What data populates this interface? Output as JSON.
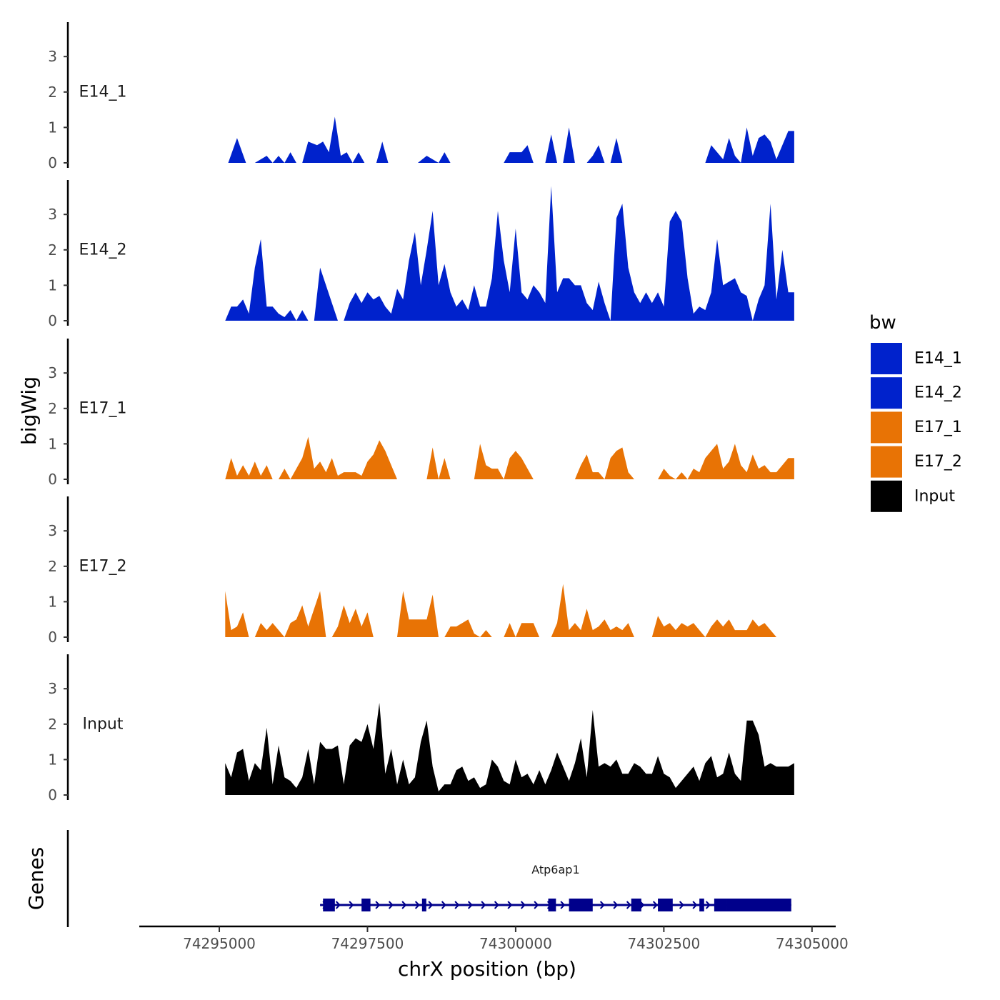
{
  "chart_data": {
    "type": "area",
    "y_axis_title": "bigWig",
    "x_axis_title": "chrX position (bp)",
    "genes_track_title": "Genes",
    "x_range": [
      74293650,
      74305400
    ],
    "x_ticks": [
      74295000,
      74297500,
      74300000,
      74302500,
      74305000
    ],
    "x_tick_labels": [
      "74295000",
      "74297500",
      "74300000",
      "74302500",
      "74305000"
    ],
    "y_range": [
      0,
      4
    ],
    "y_ticks": [
      0,
      1,
      2,
      3
    ],
    "y_tick_labels": [
      "0",
      "1",
      "2",
      "3"
    ],
    "legend": {
      "title": "bw",
      "entries": [
        {
          "name": "E14_1",
          "color": "#0022CC"
        },
        {
          "name": "E14_2",
          "color": "#0022CC"
        },
        {
          "name": "E17_1",
          "color": "#E87305"
        },
        {
          "name": "E17_2",
          "color": "#E87305"
        },
        {
          "name": "Input",
          "color": "#000000"
        }
      ]
    },
    "series": [
      {
        "name": "E14_1",
        "label": "E14_1",
        "color": "#0022CC",
        "x": [
          74295150,
          74295300,
          74295450,
          74295600,
          74295800,
          74295900,
          74296000,
          74296100,
          74296200,
          74296300,
          74296400,
          74296500,
          74296650,
          74296750,
          74296850,
          74296950,
          74297050,
          74297150,
          74297250,
          74297350,
          74297450,
          74297550,
          74297650,
          74297750,
          74297850,
          74297950,
          74298050,
          74298200,
          74298350,
          74298500,
          74298700,
          74298800,
          74298900,
          74299000,
          74299100,
          74299200,
          74299300,
          74299400,
          74299500,
          74299600,
          74299700,
          74299800,
          74299900,
          74300000,
          74300100,
          74300200,
          74300300,
          74300400,
          74300500,
          74300600,
          74300700,
          74300800,
          74300900,
          74301000,
          74301100,
          74301200,
          74301300,
          74301400,
          74301500,
          74301600,
          74301700,
          74301800,
          74301900,
          74302000,
          74302100,
          74302200,
          74302300,
          74302400,
          74302500,
          74302600,
          74302700,
          74302800,
          74302900,
          74303000,
          74303100,
          74303200,
          74303300,
          74303400,
          74303500,
          74303600,
          74303700,
          74303800,
          74303900,
          74304000,
          74304100,
          74304200,
          74304300,
          74304400,
          74304500,
          74304600,
          74304700
        ],
        "values": [
          0,
          0.7,
          0,
          0,
          0.2,
          0,
          0.2,
          0,
          0.3,
          0,
          0,
          0.6,
          0.5,
          0.6,
          0.3,
          1.3,
          0.2,
          0.3,
          0,
          0.3,
          0,
          0,
          0,
          0.6,
          0,
          0,
          0,
          0,
          0,
          0.2,
          0,
          0.3,
          0,
          0,
          0,
          0,
          0,
          0,
          0,
          0,
          0,
          0,
          0.3,
          0.3,
          0.3,
          0.5,
          0,
          0,
          0,
          0.8,
          0,
          0,
          1.0,
          0,
          0,
          0,
          0.2,
          0.5,
          0,
          0,
          0.7,
          0,
          0,
          0,
          0,
          0,
          0,
          0,
          0,
          0,
          0,
          0,
          0,
          0,
          0,
          0,
          0.5,
          0.3,
          0.1,
          0.7,
          0.2,
          0,
          1.0,
          0.2,
          0.7,
          0.8,
          0.6,
          0.1,
          0.5,
          0.9,
          0.9
        ]
      },
      {
        "name": "E14_2",
        "label": "E14_2",
        "color": "#0022CC",
        "x": [
          74295100,
          74295200,
          74295300,
          74295400,
          74295500,
          74295600,
          74295700,
          74295800,
          74295900,
          74296000,
          74296100,
          74296200,
          74296300,
          74296400,
          74296500,
          74296600,
          74296700,
          74296800,
          74296900,
          74297000,
          74297100,
          74297200,
          74297300,
          74297400,
          74297500,
          74297600,
          74297700,
          74297800,
          74297900,
          74298000,
          74298100,
          74298200,
          74298300,
          74298400,
          74298500,
          74298600,
          74298700,
          74298800,
          74298900,
          74299000,
          74299100,
          74299200,
          74299300,
          74299400,
          74299500,
          74299600,
          74299700,
          74299800,
          74299900,
          74300000,
          74300100,
          74300200,
          74300300,
          74300400,
          74300500,
          74300600,
          74300700,
          74300800,
          74300900,
          74301000,
          74301100,
          74301200,
          74301300,
          74301400,
          74301500,
          74301600,
          74301700,
          74301800,
          74301900,
          74302000,
          74302100,
          74302200,
          74302300,
          74302400,
          74302500,
          74302600,
          74302700,
          74302800,
          74302900,
          74303000,
          74303100,
          74303200,
          74303300,
          74303400,
          74303500,
          74303600,
          74303700,
          74303800,
          74303900,
          74304000,
          74304100,
          74304200,
          74304300,
          74304400,
          74304500,
          74304600,
          74304700
        ],
        "values": [
          0,
          0.4,
          0.4,
          0.6,
          0.2,
          1.5,
          2.3,
          0.4,
          0.4,
          0.2,
          0.1,
          0.3,
          0,
          0.3,
          0,
          0,
          1.5,
          1.0,
          0.5,
          0,
          0,
          0.5,
          0.8,
          0.5,
          0.8,
          0.6,
          0.7,
          0.4,
          0.2,
          0.9,
          0.6,
          1.7,
          2.5,
          1.0,
          2.0,
          3.1,
          1.0,
          1.6,
          0.8,
          0.4,
          0.6,
          0.3,
          1.0,
          0.4,
          0.4,
          1.2,
          3.1,
          1.7,
          0.8,
          2.6,
          0.8,
          0.6,
          1.0,
          0.8,
          0.5,
          3.8,
          0.8,
          1.2,
          1.2,
          1.0,
          1.0,
          0.5,
          0.3,
          1.1,
          0.5,
          0,
          2.9,
          3.3,
          1.5,
          0.8,
          0.5,
          0.8,
          0.5,
          0.8,
          0.4,
          2.8,
          3.1,
          2.8,
          1.2,
          0.2,
          0.4,
          0.3,
          0.8,
          2.3,
          1.0,
          1.1,
          1.2,
          0.8,
          0.7,
          0,
          0.6,
          1.0,
          3.3,
          0.6,
          2.0,
          0.8,
          0.8
        ]
      },
      {
        "name": "E17_1",
        "label": "E17_1",
        "color": "#E87305",
        "x": [
          74295100,
          74295200,
          74295300,
          74295400,
          74295500,
          74295600,
          74295700,
          74295800,
          74295900,
          74296000,
          74296100,
          74296200,
          74296300,
          74296400,
          74296500,
          74296600,
          74296700,
          74296800,
          74296900,
          74297000,
          74297100,
          74297200,
          74297300,
          74297400,
          74297500,
          74297600,
          74297700,
          74297800,
          74297900,
          74298000,
          74298100,
          74298200,
          74298300,
          74298400,
          74298500,
          74298600,
          74298700,
          74298800,
          74298900,
          74299000,
          74299100,
          74299200,
          74299300,
          74299400,
          74299500,
          74299600,
          74299700,
          74299800,
          74299900,
          74300000,
          74300100,
          74300200,
          74300300,
          74300400,
          74300500,
          74300600,
          74300700,
          74300800,
          74300900,
          74301000,
          74301100,
          74301200,
          74301300,
          74301400,
          74301500,
          74301600,
          74301700,
          74301800,
          74301900,
          74302000,
          74302100,
          74302200,
          74302300,
          74302400,
          74302500,
          74302600,
          74302700,
          74302800,
          74302900,
          74303000,
          74303100,
          74303200,
          74303300,
          74303400,
          74303500,
          74303600,
          74303700,
          74303800,
          74303900,
          74304000,
          74304100,
          74304200,
          74304300,
          74304400,
          74304500,
          74304600,
          74304700
        ],
        "values": [
          0,
          0.6,
          0.1,
          0.4,
          0.1,
          0.5,
          0.1,
          0.4,
          0,
          0,
          0.3,
          0,
          0.3,
          0.6,
          1.2,
          0.3,
          0.5,
          0.2,
          0.6,
          0.1,
          0.2,
          0.2,
          0.2,
          0.1,
          0.5,
          0.7,
          1.1,
          0.8,
          0.4,
          0,
          0,
          0,
          0,
          0,
          0,
          0.9,
          0,
          0.6,
          0,
          0,
          0,
          0,
          0,
          1.0,
          0.4,
          0.3,
          0.3,
          0,
          0.6,
          0.8,
          0.6,
          0.3,
          0,
          0,
          0,
          0,
          0,
          0,
          0,
          0,
          0.4,
          0.7,
          0.2,
          0.2,
          0,
          0.6,
          0.8,
          0.9,
          0.2,
          0,
          0,
          0,
          0,
          0,
          0.3,
          0.1,
          0,
          0.2,
          0,
          0.3,
          0.2,
          0.6,
          0.8,
          1.0,
          0.3,
          0.5,
          1.0,
          0.4,
          0.2,
          0.7,
          0.3,
          0.4,
          0.2,
          0.2,
          0.4,
          0.6,
          0.6
        ]
      },
      {
        "name": "E17_2",
        "label": "E17_2",
        "color": "#E87305",
        "x": [
          74295100,
          74295200,
          74295300,
          74295400,
          74295500,
          74295600,
          74295700,
          74295800,
          74295900,
          74296000,
          74296100,
          74296200,
          74296300,
          74296400,
          74296500,
          74296600,
          74296700,
          74296800,
          74296900,
          74297000,
          74297100,
          74297200,
          74297300,
          74297400,
          74297500,
          74297600,
          74297700,
          74297800,
          74297900,
          74298000,
          74298100,
          74298200,
          74298300,
          74298400,
          74298500,
          74298600,
          74298700,
          74298800,
          74298900,
          74299000,
          74299100,
          74299200,
          74299300,
          74299400,
          74299500,
          74299600,
          74299700,
          74299800,
          74299900,
          74300000,
          74300100,
          74300200,
          74300300,
          74300400,
          74300500,
          74300600,
          74300700,
          74300800,
          74300900,
          74301000,
          74301100,
          74301200,
          74301300,
          74301400,
          74301500,
          74301600,
          74301700,
          74301800,
          74301900,
          74302000,
          74302100,
          74302200,
          74302300,
          74302400,
          74302500,
          74302600,
          74302700,
          74302800,
          74302900,
          74303000,
          74303100,
          74303200,
          74303300,
          74303400,
          74303500,
          74303600,
          74303700,
          74303800,
          74303900,
          74304000,
          74304100,
          74304200,
          74304300,
          74304400
        ],
        "values": [
          1.3,
          0.2,
          0.3,
          0.7,
          0,
          0,
          0.4,
          0.2,
          0.4,
          0.2,
          0,
          0.4,
          0.5,
          0.9,
          0.3,
          0.8,
          1.3,
          0,
          0,
          0.3,
          0.9,
          0.4,
          0.8,
          0.3,
          0.7,
          0,
          0,
          0,
          0,
          0,
          1.3,
          0.5,
          0.5,
          0.5,
          0.5,
          1.2,
          0,
          0,
          0.3,
          0.3,
          0.4,
          0.5,
          0.1,
          0,
          0.2,
          0,
          0,
          0,
          0.4,
          0,
          0.4,
          0.4,
          0.4,
          0,
          0,
          0,
          0.4,
          1.5,
          0.2,
          0.4,
          0.2,
          0.8,
          0.2,
          0.3,
          0.5,
          0.2,
          0.3,
          0.2,
          0.4,
          0,
          0,
          0,
          0,
          0.6,
          0.3,
          0.4,
          0.2,
          0.4,
          0.3,
          0.4,
          0.2,
          0,
          0.3,
          0.5,
          0.3,
          0.5,
          0.2,
          0.2,
          0.2,
          0.5,
          0.3,
          0.4,
          0.2,
          0
        ]
      },
      {
        "name": "Input",
        "label": "Input",
        "color": "#000000",
        "x": [
          74295100,
          74295200,
          74295300,
          74295400,
          74295500,
          74295600,
          74295700,
          74295800,
          74295900,
          74296000,
          74296100,
          74296200,
          74296300,
          74296400,
          74296500,
          74296600,
          74296700,
          74296800,
          74296900,
          74297000,
          74297100,
          74297200,
          74297300,
          74297400,
          74297500,
          74297600,
          74297700,
          74297800,
          74297900,
          74298000,
          74298100,
          74298200,
          74298300,
          74298400,
          74298500,
          74298600,
          74298700,
          74298800,
          74298900,
          74299000,
          74299100,
          74299200,
          74299300,
          74299400,
          74299500,
          74299600,
          74299700,
          74299800,
          74299900,
          74300000,
          74300100,
          74300200,
          74300300,
          74300400,
          74300500,
          74300600,
          74300700,
          74300800,
          74300900,
          74301000,
          74301100,
          74301200,
          74301300,
          74301400,
          74301500,
          74301600,
          74301700,
          74301800,
          74301900,
          74302000,
          74302100,
          74302200,
          74302300,
          74302400,
          74302500,
          74302600,
          74302700,
          74302800,
          74302900,
          74303000,
          74303100,
          74303200,
          74303300,
          74303400,
          74303500,
          74303600,
          74303700,
          74303800,
          74303900,
          74304000,
          74304100,
          74304200,
          74304300,
          74304400,
          74304500,
          74304600,
          74304700
        ],
        "values": [
          0.9,
          0.5,
          1.2,
          1.3,
          0.4,
          0.9,
          0.7,
          1.9,
          0.3,
          1.4,
          0.5,
          0.4,
          0.2,
          0.5,
          1.3,
          0.3,
          1.5,
          1.3,
          1.3,
          1.4,
          0.3,
          1.4,
          1.6,
          1.5,
          2.0,
          1.3,
          2.6,
          0.6,
          1.3,
          0.3,
          1.0,
          0.3,
          0.5,
          1.5,
          2.1,
          0.8,
          0.1,
          0.3,
          0.3,
          0.7,
          0.8,
          0.4,
          0.5,
          0.2,
          0.3,
          1.0,
          0.8,
          0.4,
          0.3,
          1.0,
          0.5,
          0.6,
          0.3,
          0.7,
          0.3,
          0.7,
          1.2,
          0.8,
          0.4,
          0.9,
          1.6,
          0.5,
          2.4,
          0.8,
          0.9,
          0.8,
          1.0,
          0.6,
          0.6,
          0.9,
          0.8,
          0.6,
          0.6,
          1.1,
          0.6,
          0.5,
          0.2,
          0.4,
          0.6,
          0.8,
          0.4,
          0.9,
          1.1,
          0.5,
          0.6,
          1.2,
          0.6,
          0.4,
          2.1,
          2.1,
          1.7,
          0.8,
          0.9,
          0.8,
          0.8,
          0.8,
          0.9
        ]
      }
    ],
    "gene": {
      "name": "Atp6ap1",
      "start": 74296700,
      "end": 74304650,
      "exons": [
        [
          74296750,
          74296950
        ],
        [
          74297400,
          74297550
        ],
        [
          74298420,
          74298480
        ],
        [
          74300550,
          74300680
        ],
        [
          74300900,
          74301300
        ],
        [
          74301950,
          74302120
        ],
        [
          74302400,
          74302650
        ],
        [
          74303100,
          74303180
        ],
        [
          74303350,
          74303550
        ],
        [
          74303550,
          74304650
        ]
      ]
    }
  }
}
